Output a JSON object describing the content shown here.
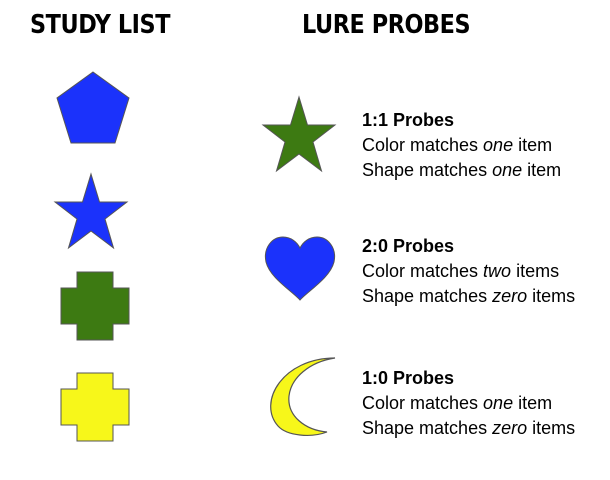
{
  "headings": {
    "study": "STUDY LIST",
    "lure": "LURE PROBES"
  },
  "colors": {
    "blue": "#1b32fb",
    "green": "#3d7a12",
    "yellow": "#f7f71a",
    "outline": "#555555"
  },
  "study_items": [
    {
      "shape": "pentagon",
      "color": "blue"
    },
    {
      "shape": "star",
      "color": "blue"
    },
    {
      "shape": "cross",
      "color": "green"
    },
    {
      "shape": "cross",
      "color": "yellow"
    }
  ],
  "probes": [
    {
      "shape": "star",
      "color": "green",
      "title": "1:1 Probes",
      "color_line": {
        "prefix": "Color matches ",
        "emph": "one",
        "suffix": " item"
      },
      "shape_line": {
        "prefix": "Shape matches ",
        "emph": "one",
        "suffix": " item"
      }
    },
    {
      "shape": "heart",
      "color": "blue",
      "title": "2:0 Probes",
      "color_line": {
        "prefix": "Color matches ",
        "emph": "two",
        "suffix": " items"
      },
      "shape_line": {
        "prefix": "Shape matches ",
        "emph": "zero",
        "suffix": " items"
      }
    },
    {
      "shape": "moon",
      "color": "yellow",
      "title": "1:0 Probes",
      "color_line": {
        "prefix": "Color matches ",
        "emph": "one",
        "suffix": " item"
      },
      "shape_line": {
        "prefix": "Shape matches ",
        "emph": "zero",
        "suffix": " items"
      }
    }
  ]
}
